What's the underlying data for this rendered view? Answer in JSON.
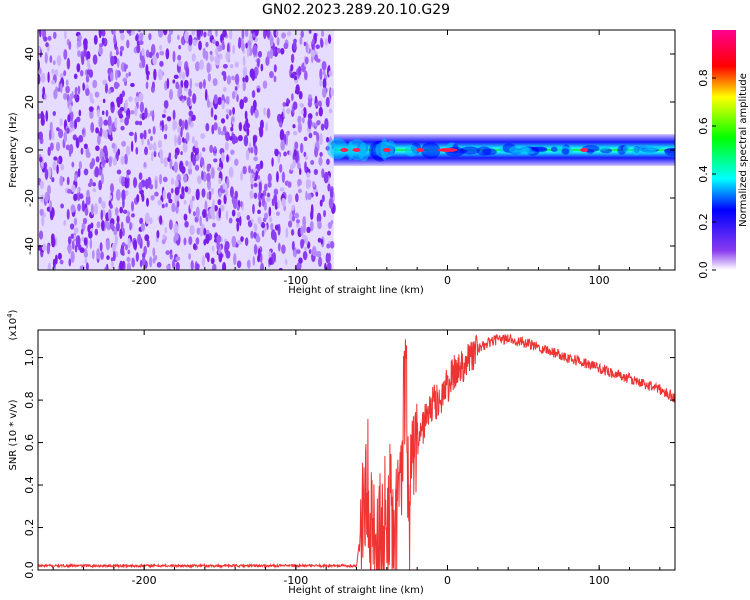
{
  "title": "GN02.2023.289.20.10.G29",
  "chart_data": [
    {
      "type": "heatmap",
      "xlabel": "Height of straight line (km)",
      "ylabel": "Frequency (Hz)",
      "xlim": [
        -270,
        150
      ],
      "ylim": [
        -50,
        50
      ],
      "x_ticks": [
        -200,
        -100,
        0,
        100
      ],
      "y_ticks": [
        -40,
        -20,
        0,
        20,
        40
      ],
      "colorbar": {
        "label": "Normalized spectral amplitude",
        "range": [
          0,
          1
        ],
        "ticks": [
          0.0,
          0.2,
          0.4,
          0.6,
          0.8
        ],
        "colormap": "rainbow (purple-blue-cyan-green-yellow-red-magenta)"
      },
      "regions": [
        {
          "x_range": [
            -270,
            -75
          ],
          "freq_range": [
            -50,
            50
          ],
          "amplitude": "low, noise",
          "color": "#8a3cf0"
        },
        {
          "x_range": [
            -75,
            150
          ],
          "freq_center": 0,
          "freq_halfwidth_hz": 3,
          "amplitude": "high, narrow band near 0 Hz",
          "color": "#00e000"
        }
      ],
      "peak_amplitude_locations_km": [
        -68,
        -60,
        -40,
        -18,
        0,
        90
      ]
    },
    {
      "type": "line",
      "xlabel": "Height of straight line (km)",
      "ylabel": "SNR (10 * v/v)",
      "scale_note": "(x10^4)",
      "xlim": [
        -270,
        150
      ],
      "ylim": [
        0,
        1.13
      ],
      "x_ticks": [
        -200,
        -100,
        0,
        100
      ],
      "y_ticks": [
        0.0,
        0.2,
        0.4,
        0.6,
        0.8,
        1.0
      ],
      "grid": false,
      "series": [
        {
          "color": "#ee3333",
          "x": [
            -270,
            -220,
            -150,
            -100,
            -70,
            -60,
            -57,
            -55,
            -50,
            -45,
            -40,
            -35,
            -30,
            -28,
            -25,
            -20,
            -15,
            -10,
            -5,
            0,
            5,
            10,
            20,
            30,
            40,
            50,
            60,
            80,
            100,
            120,
            140,
            150
          ],
          "y": [
            0.02,
            0.02,
            0.02,
            0.02,
            0.02,
            0.02,
            0.2,
            0.36,
            0.2,
            0.15,
            0.2,
            0.1,
            0.55,
            1.04,
            0.35,
            0.6,
            0.7,
            0.78,
            0.8,
            0.87,
            0.93,
            0.97,
            1.04,
            1.08,
            1.09,
            1.07,
            1.05,
            1.0,
            0.95,
            0.9,
            0.85,
            0.81
          ]
        }
      ]
    }
  ]
}
